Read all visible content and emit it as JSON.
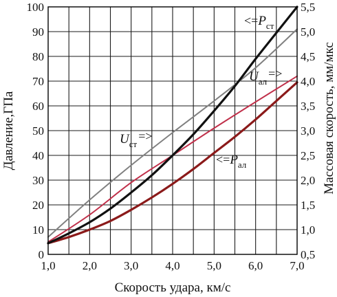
{
  "chart_data": {
    "type": "line",
    "xlabel": "Скорость удара, км/с",
    "ylabel_left": "Давление,ГПа",
    "ylabel_right": "Массовая скорость, мм/мкс",
    "xlim": [
      1.0,
      7.0
    ],
    "ylim_left": [
      0,
      100
    ],
    "ylim_right": [
      0.5,
      5.5
    ],
    "grid": true,
    "x_ticks": [
      "1,0",
      "2,0",
      "3,0",
      "4,0",
      "5,0",
      "6,0",
      "7,0"
    ],
    "y_left_ticks": [
      "0",
      "10",
      "20",
      "30",
      "40",
      "50",
      "60",
      "70",
      "80",
      "90",
      "100"
    ],
    "y_right_ticks": [
      "0,5",
      "1,0",
      "1,5",
      "2,0",
      "2,5",
      "3,0",
      "3,5",
      "4,0",
      "4,5",
      "5,0",
      "5,5"
    ],
    "series": [
      {
        "key": "p_st",
        "axis": "left",
        "color": "#111111",
        "x": [
          1.0,
          1.5,
          2.0,
          2.5,
          3.0,
          3.5,
          4.0,
          4.5,
          5.0,
          5.5,
          6.0,
          6.5,
          7.0
        ],
        "y": [
          4.5,
          8.5,
          13,
          18.5,
          25,
          32,
          40,
          48.5,
          58,
          68,
          79,
          89.5,
          100
        ]
      },
      {
        "key": "p_al",
        "axis": "left",
        "color": "#8b1a1a",
        "x": [
          1.0,
          1.5,
          2.0,
          2.5,
          3.0,
          3.5,
          4.0,
          4.5,
          5.0,
          5.5,
          6.0,
          6.5,
          7.0
        ],
        "y": [
          4.5,
          7,
          10,
          13.5,
          18,
          23,
          28.5,
          34.5,
          41,
          47.5,
          54.5,
          62,
          69.5
        ]
      },
      {
        "key": "u_st",
        "axis": "right",
        "color": "#808080",
        "x": [
          1.0,
          2.0,
          3.0,
          4.0,
          5.0,
          6.0,
          7.0
        ],
        "y": [
          0.85,
          1.6,
          2.3,
          2.96,
          3.6,
          4.27,
          5.05
        ]
      },
      {
        "key": "u_al",
        "axis": "right",
        "color": "#c0304a",
        "x": [
          1.0,
          2.0,
          3.0,
          4.0,
          5.0,
          6.0,
          7.0
        ],
        "y": [
          0.75,
          1.3,
          1.95,
          2.5,
          3.05,
          3.58,
          4.1
        ]
      }
    ],
    "annotations": [
      {
        "key": "p_st",
        "prefix": "<=",
        "symbol": "P",
        "sub": "ст",
        "suffix": ""
      },
      {
        "key": "u_al",
        "prefix": "",
        "symbol": "U",
        "sub": "ал",
        "suffix": "=>"
      },
      {
        "key": "u_st",
        "prefix": "",
        "symbol": "U",
        "sub": "ст",
        "suffix": "=>"
      },
      {
        "key": "p_al",
        "prefix": "<=",
        "symbol": "P",
        "sub": "ал",
        "suffix": ""
      }
    ]
  }
}
